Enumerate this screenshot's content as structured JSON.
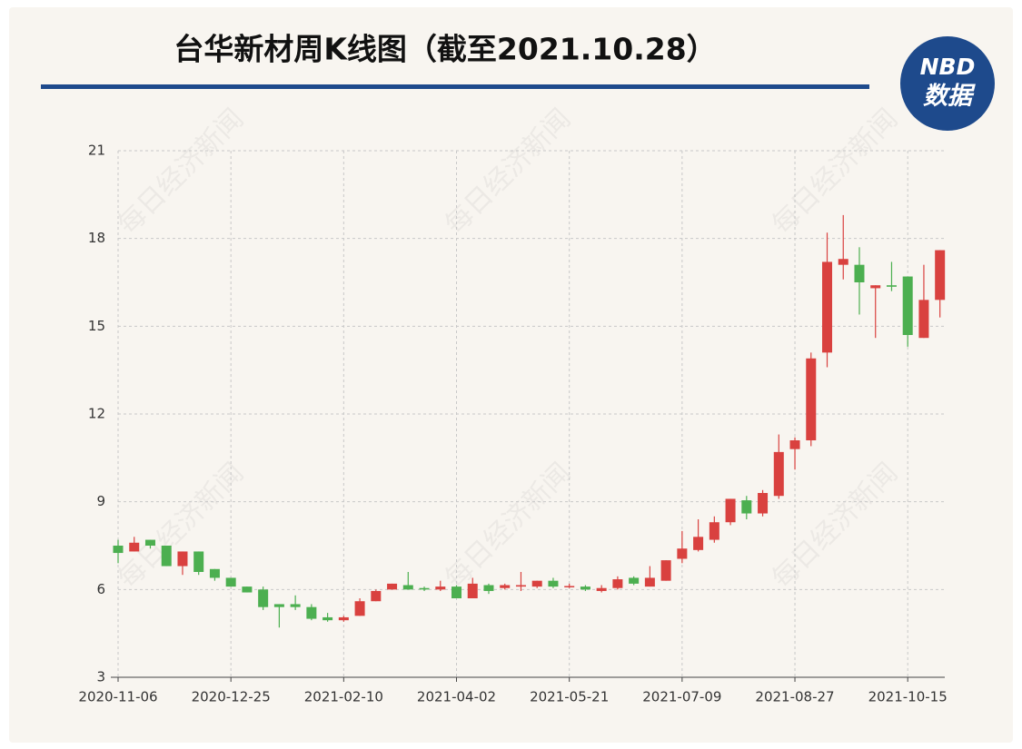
{
  "header": {
    "title": "台华新材周K线图（截至2021.10.28）",
    "logo_top": "NBD",
    "logo_bottom": "数据",
    "watermark": "每日经济新闻"
  },
  "chart_data": {
    "type": "candlestick",
    "categories": [
      "2020-11-06",
      null,
      null,
      null,
      null,
      null,
      null,
      "2020-12-25",
      null,
      null,
      null,
      null,
      null,
      null,
      "2021-02-10",
      null,
      null,
      null,
      null,
      null,
      null,
      "2021-04-02",
      null,
      null,
      null,
      null,
      null,
      null,
      "2021-05-21",
      null,
      null,
      null,
      null,
      null,
      null,
      "2021-07-09",
      null,
      null,
      null,
      null,
      null,
      null,
      "2021-08-27",
      null,
      null,
      null,
      null,
      null,
      null,
      "2021-10-15",
      null,
      null
    ],
    "open": [
      7.5,
      7.3,
      7.7,
      7.5,
      6.8,
      7.3,
      6.7,
      6.4,
      6.1,
      6.0,
      5.5,
      5.5,
      5.4,
      5.05,
      4.95,
      5.1,
      5.6,
      6.0,
      6.15,
      6.05,
      6.0,
      6.1,
      5.7,
      6.15,
      6.05,
      6.1,
      6.1,
      6.3,
      6.1,
      6.1,
      5.95,
      6.05,
      6.4,
      6.1,
      6.3,
      7.05,
      7.35,
      7.7,
      8.3,
      9.05,
      8.6,
      9.2,
      10.8,
      11.1,
      14.1,
      17.1,
      17.1,
      16.3,
      16.4,
      16.7,
      14.6,
      15.9
    ],
    "close": [
      7.25,
      7.6,
      7.5,
      6.8,
      7.3,
      6.6,
      6.4,
      6.1,
      5.9,
      5.4,
      5.4,
      5.4,
      5.0,
      4.95,
      5.05,
      5.6,
      5.95,
      6.2,
      6.0,
      6.0,
      6.1,
      5.7,
      6.2,
      5.95,
      6.15,
      6.15,
      6.3,
      6.1,
      6.12,
      6.0,
      6.05,
      6.35,
      6.2,
      6.4,
      7.0,
      7.4,
      7.8,
      8.3,
      9.1,
      8.6,
      9.3,
      10.7,
      11.1,
      13.9,
      17.2,
      17.3,
      16.5,
      16.4,
      16.35,
      14.7,
      15.9,
      17.6
    ],
    "low": [
      6.9,
      7.3,
      7.4,
      6.8,
      6.5,
      6.5,
      6.3,
      6.1,
      5.9,
      5.3,
      4.7,
      5.3,
      4.95,
      4.9,
      4.9,
      5.1,
      5.6,
      6.0,
      6.0,
      5.95,
      5.95,
      5.7,
      5.7,
      5.85,
      6.0,
      5.95,
      6.05,
      6.05,
      6.05,
      5.95,
      5.9,
      6.0,
      6.15,
      6.1,
      6.3,
      6.9,
      7.3,
      7.6,
      8.2,
      8.4,
      8.5,
      9.1,
      10.1,
      10.9,
      13.6,
      16.6,
      15.4,
      14.6,
      16.2,
      14.3,
      14.6,
      15.3
    ],
    "high": [
      7.7,
      7.8,
      7.7,
      7.5,
      7.3,
      7.3,
      6.7,
      6.4,
      6.1,
      6.1,
      5.5,
      5.8,
      5.5,
      5.2,
      5.1,
      5.7,
      6.0,
      6.2,
      6.6,
      6.1,
      6.3,
      6.15,
      6.4,
      6.2,
      6.2,
      6.6,
      6.3,
      6.4,
      6.2,
      6.15,
      6.15,
      6.45,
      6.45,
      6.8,
      7.0,
      8.0,
      8.4,
      8.5,
      9.1,
      9.2,
      9.4,
      11.3,
      11.2,
      14.1,
      18.2,
      18.8,
      17.7,
      16.4,
      17.2,
      16.7,
      17.1,
      17.6
    ],
    "up_color": "#d9413f",
    "down_color": "#4caf50",
    "ylim": [
      3,
      21
    ],
    "yticks": [
      3,
      6,
      9,
      12,
      15,
      18,
      21
    ],
    "grid": true
  }
}
